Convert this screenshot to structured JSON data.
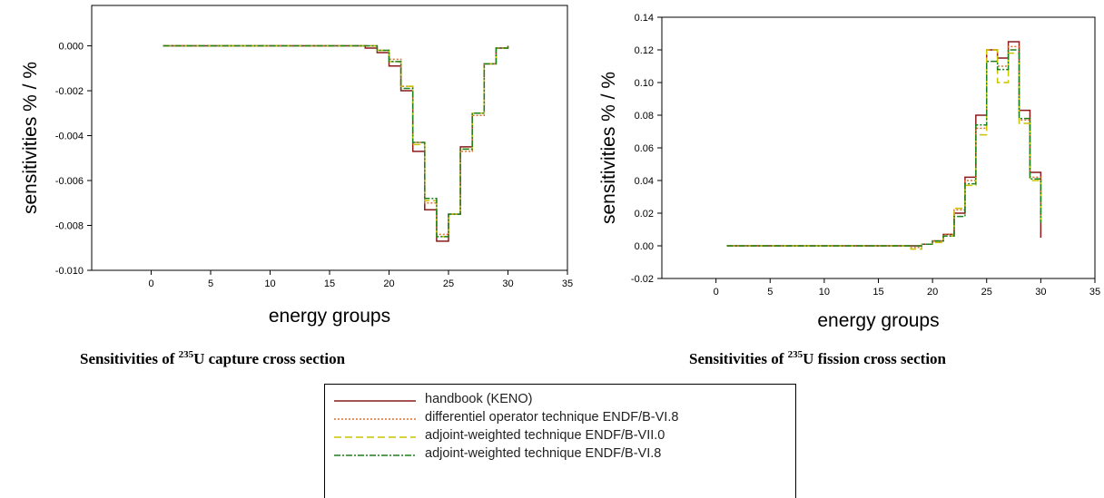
{
  "colors": {
    "handbook": "#8b1a1a",
    "differentiel": "#e0702e",
    "adjoint_vii0": "#c9c400",
    "adjoint_vi8": "#1e7f1e"
  },
  "captions": {
    "left": {
      "prefix": "Sensitivities of ",
      "sup": "235",
      "suffix": "U capture cross section"
    },
    "right": {
      "prefix": "Sensitivities of ",
      "sup": "235",
      "suffix": "U fission cross section"
    }
  },
  "chart_data": [
    {
      "type": "line",
      "step": true,
      "xlabel": "energy groups",
      "ylabel": "sensitivities  % / %",
      "xlim": [
        -5,
        35
      ],
      "ylim": [
        -0.01,
        0.0018
      ],
      "xticks": [
        0,
        5,
        10,
        15,
        20,
        25,
        30,
        35
      ],
      "yticks": [
        -0.01,
        -0.008,
        -0.006,
        -0.004,
        -0.002,
        0.0
      ],
      "ytick_labels": [
        "-0.010",
        "-0.008",
        "-0.006",
        "-0.004",
        "-0.002",
        "0.000"
      ],
      "x": [
        1,
        2,
        3,
        4,
        5,
        6,
        7,
        8,
        9,
        10,
        11,
        12,
        13,
        14,
        15,
        16,
        17,
        18,
        19,
        20,
        21,
        22,
        23,
        24,
        25,
        26,
        27,
        28,
        29,
        30
      ],
      "series": [
        {
          "name": "handbook (KENO)",
          "color_key": "handbook",
          "dash": "",
          "values": [
            0,
            0,
            0,
            0,
            0,
            0,
            0,
            0,
            0,
            0,
            0,
            0,
            0,
            0,
            0,
            0,
            0,
            -0.0001,
            -0.0003,
            -0.0009,
            -0.002,
            -0.0047,
            -0.0073,
            -0.0087,
            -0.0075,
            -0.0045,
            -0.003,
            -0.0008,
            -0.0001,
            0
          ]
        },
        {
          "name": "differentiel operator technique ENDF/B-VI.8",
          "color_key": "differentiel",
          "dash": "2,2",
          "values": [
            0,
            0,
            0,
            0,
            0,
            0,
            0,
            0,
            0,
            0,
            0,
            0,
            0,
            0,
            0,
            0,
            0,
            0,
            -0.0002,
            -0.0006,
            -0.0018,
            -0.0043,
            -0.007,
            -0.0084,
            -0.0075,
            -0.0047,
            -0.0031,
            -0.0008,
            -0.0001,
            0
          ]
        },
        {
          "name": "adjoint-weighted technique ENDF/B-VII.0",
          "color_key": "adjoint_vii0",
          "dash": "8,4",
          "values": [
            0,
            0,
            0,
            0,
            0,
            0,
            0,
            0,
            0,
            0,
            0,
            0,
            0,
            0,
            0,
            0,
            0,
            0,
            -0.0002,
            -0.0007,
            -0.0018,
            -0.0044,
            -0.0069,
            -0.0085,
            -0.0075,
            -0.0046,
            -0.003,
            -0.0008,
            -0.0001,
            0
          ]
        },
        {
          "name": "adjoint-weighted technique ENDF/B-VI.8",
          "color_key": "adjoint_vi8",
          "dash": "7,2,2,2",
          "values": [
            0,
            0,
            0,
            0,
            0,
            0,
            0,
            0,
            0,
            0,
            0,
            0,
            0,
            0,
            0,
            0,
            0,
            0,
            -0.0002,
            -0.0007,
            -0.0019,
            -0.0043,
            -0.0068,
            -0.0085,
            -0.0075,
            -0.0046,
            -0.003,
            -0.0008,
            -0.0001,
            0
          ]
        }
      ]
    },
    {
      "type": "line",
      "step": true,
      "xlabel": "energy groups",
      "ylabel": "sensitivities % / %",
      "xlim": [
        -5,
        35
      ],
      "ylim": [
        -0.02,
        0.14
      ],
      "xticks": [
        0,
        5,
        10,
        15,
        20,
        25,
        30,
        35
      ],
      "yticks": [
        -0.02,
        0.0,
        0.02,
        0.04,
        0.06,
        0.08,
        0.1,
        0.12,
        0.14
      ],
      "ytick_labels": [
        "-0.02",
        "0.00",
        "0.02",
        "0.04",
        "0.06",
        "0.08",
        "0.10",
        "0.12",
        "0.14"
      ],
      "x": [
        1,
        2,
        3,
        4,
        5,
        6,
        7,
        8,
        9,
        10,
        11,
        12,
        13,
        14,
        15,
        16,
        17,
        18,
        19,
        20,
        21,
        22,
        23,
        24,
        25,
        26,
        27,
        28,
        29,
        30
      ],
      "series": [
        {
          "name": "handbook (KENO)",
          "color_key": "handbook",
          "dash": "",
          "values": [
            0,
            0,
            0,
            0,
            0,
            0,
            0,
            0,
            0,
            0,
            0,
            0,
            0,
            0,
            0,
            0,
            0,
            0,
            0.001,
            0.003,
            0.007,
            0.02,
            0.042,
            0.08,
            0.12,
            0.115,
            0.125,
            0.083,
            0.045,
            0.005
          ]
        },
        {
          "name": "differentiel operator technique ENDF/B-VI.8",
          "color_key": "differentiel",
          "dash": "2,2",
          "values": [
            0,
            0,
            0,
            0,
            0,
            0,
            0,
            0,
            0,
            0,
            0,
            0,
            0,
            0,
            0,
            0,
            0,
            -0.001,
            0.001,
            0.003,
            0.007,
            0.022,
            0.04,
            0.072,
            0.12,
            0.11,
            0.122,
            0.077,
            0.042,
            0.016
          ]
        },
        {
          "name": "adjoint-weighted technique ENDF/B-VII.0",
          "color_key": "adjoint_vii0",
          "dash": "8,4",
          "values": [
            0,
            0,
            0,
            0,
            0,
            0,
            0,
            0,
            0,
            0,
            0,
            0,
            0,
            0,
            0,
            0,
            0,
            -0.002,
            0.001,
            0.002,
            0.006,
            0.023,
            0.037,
            0.068,
            0.12,
            0.1,
            0.118,
            0.075,
            0.04,
            0.013
          ]
        },
        {
          "name": "adjoint-weighted technique ENDF/B-VI.8",
          "color_key": "adjoint_vi8",
          "dash": "7,2,2,2",
          "values": [
            0,
            0,
            0,
            0,
            0,
            0,
            0,
            0,
            0,
            0,
            0,
            0,
            0,
            0,
            0,
            0,
            0,
            0,
            0.001,
            0.003,
            0.006,
            0.018,
            0.038,
            0.074,
            0.113,
            0.108,
            0.12,
            0.078,
            0.041,
            0.014
          ]
        }
      ]
    }
  ],
  "legend": {
    "items": [
      {
        "label": "handbook (KENO)",
        "color_key": "handbook",
        "dash": ""
      },
      {
        "label": "differentiel operator technique ENDF/B-VI.8",
        "color_key": "differentiel",
        "dash": "2,2"
      },
      {
        "label": "adjoint-weighted technique ENDF/B-VII.0",
        "color_key": "adjoint_vii0",
        "dash": "8,4"
      },
      {
        "label": "adjoint-weighted technique ENDF/B-VI.8",
        "color_key": "adjoint_vi8",
        "dash": "7,2,2,2"
      }
    ]
  }
}
